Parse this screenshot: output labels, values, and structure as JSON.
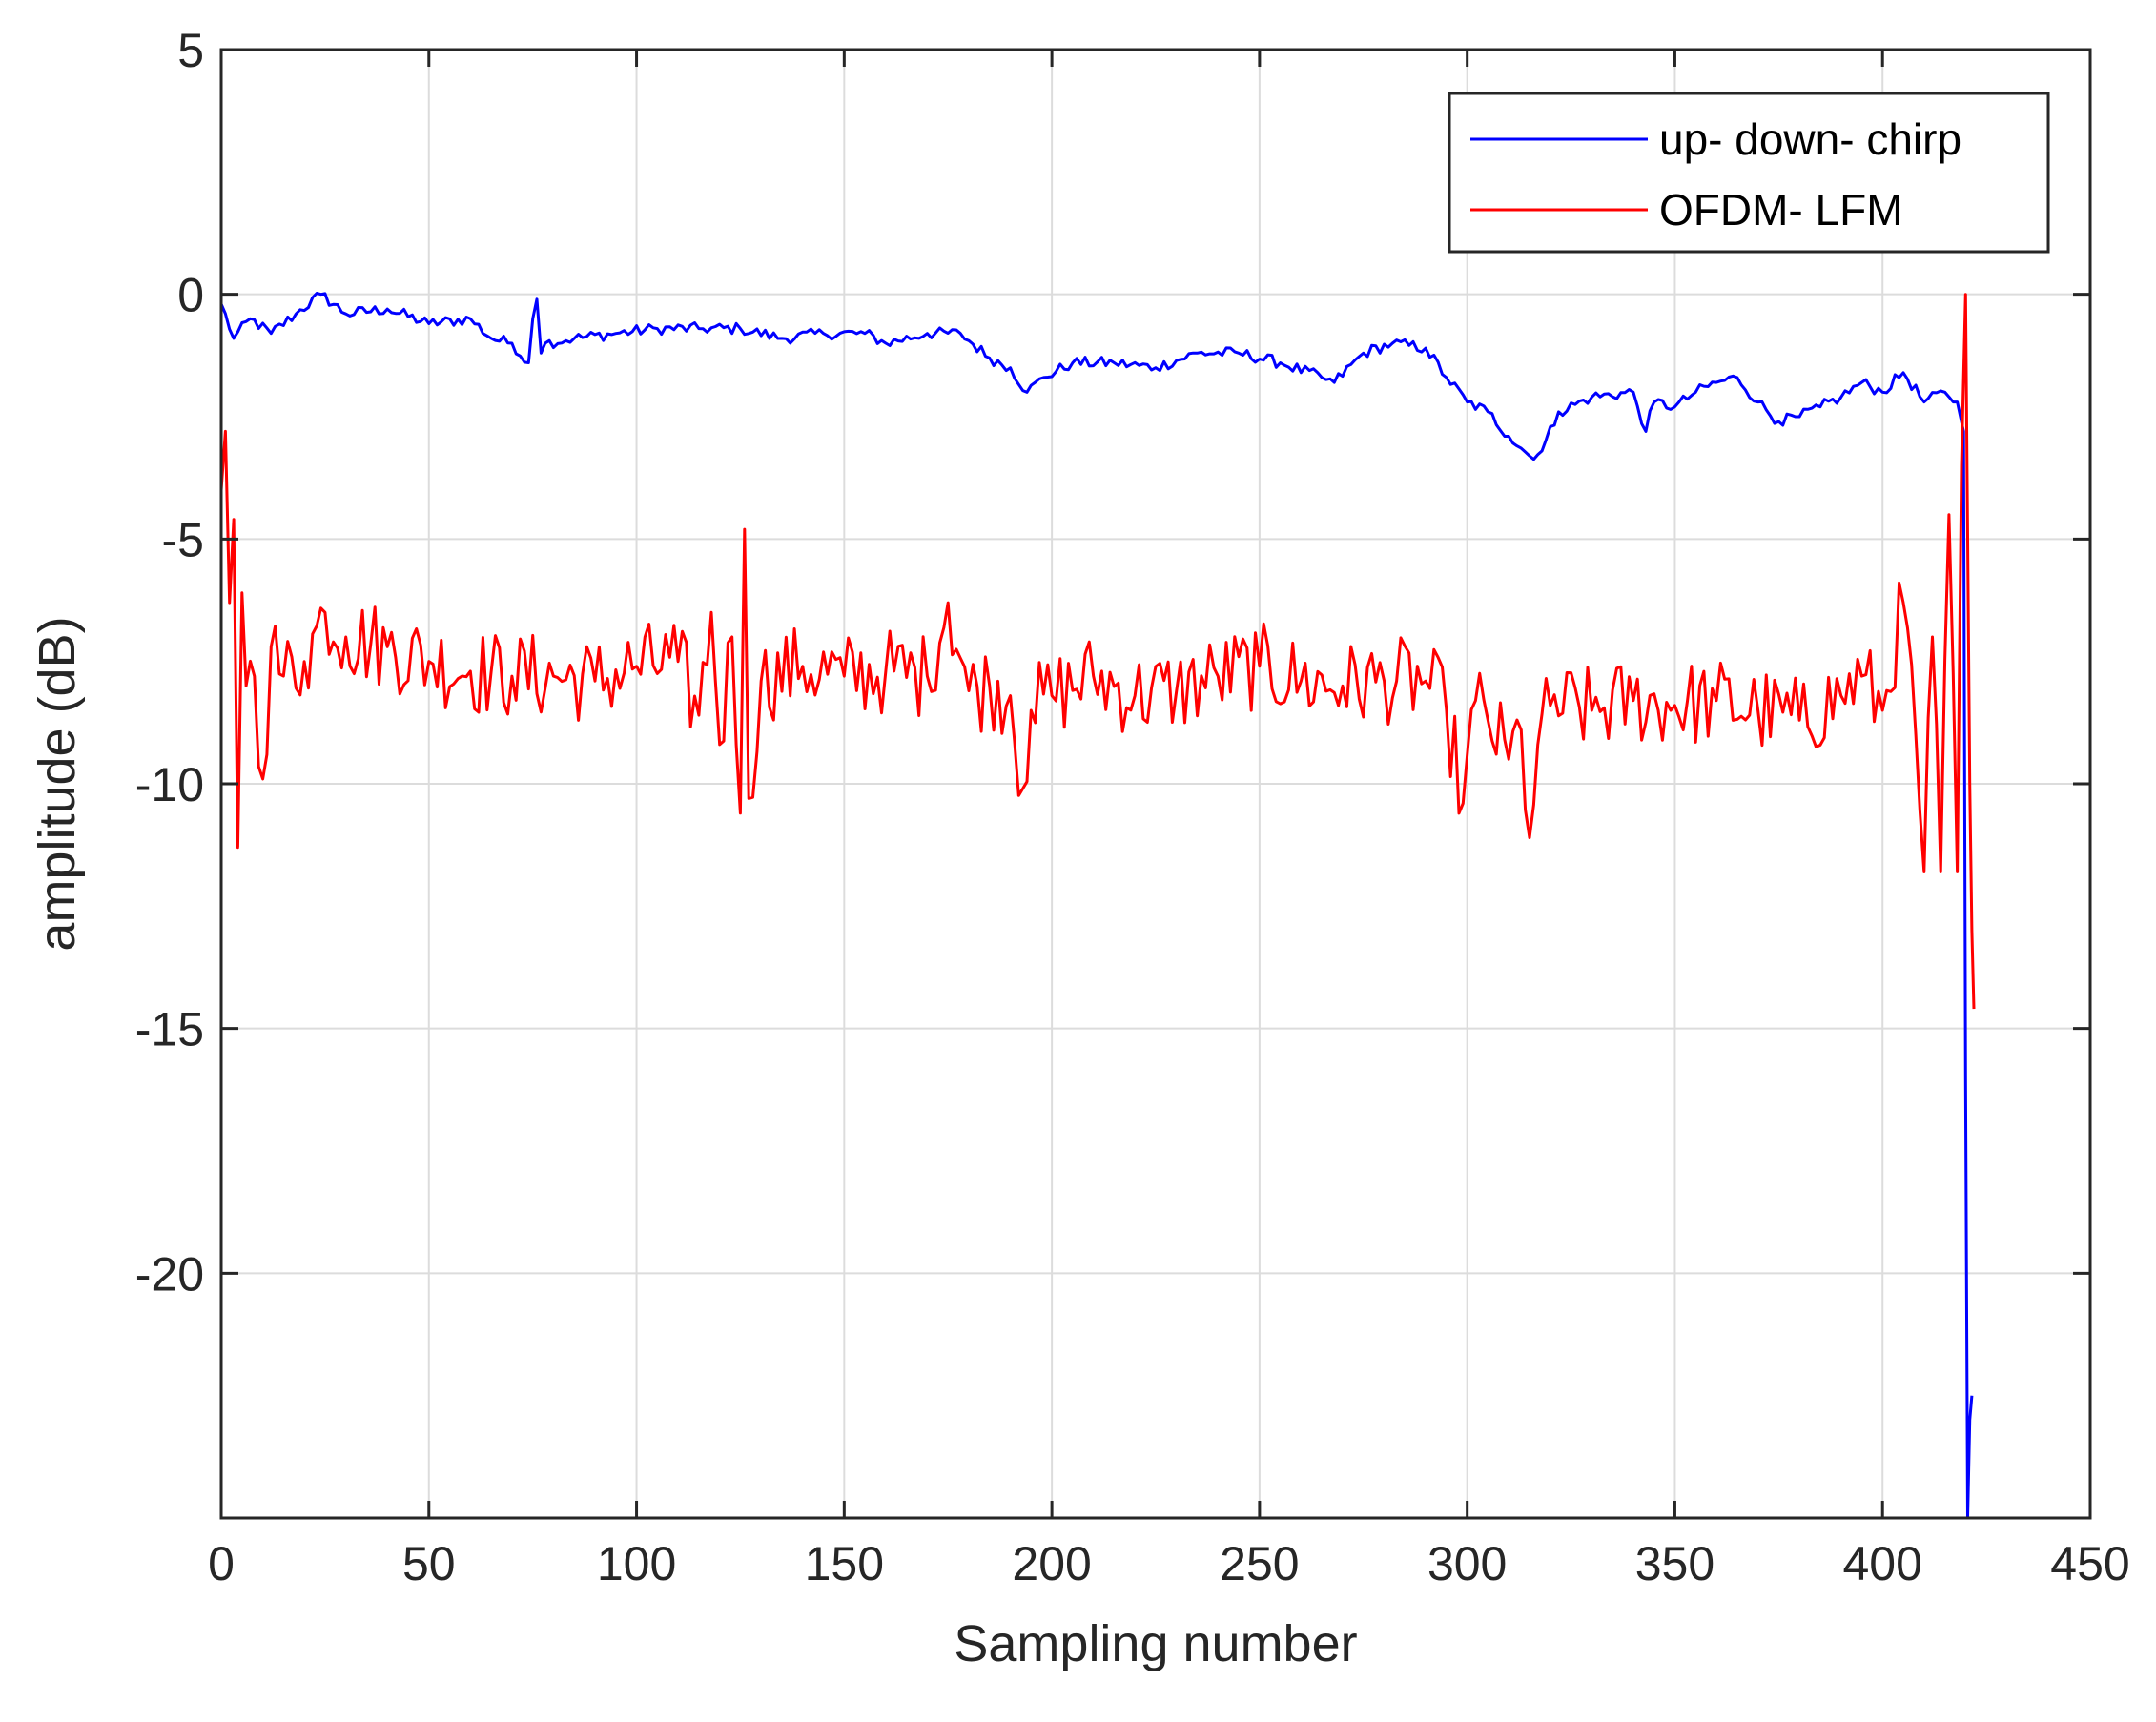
{
  "chart_data": {
    "type": "line",
    "title": "",
    "xlabel": "Sampling number",
    "ylabel": "amplitude (dB)",
    "xlim": [
      0,
      450
    ],
    "ylim": [
      -25,
      5
    ],
    "xticks": [
      0,
      50,
      100,
      150,
      200,
      250,
      300,
      350,
      400,
      450
    ],
    "yticks": [
      5,
      0,
      -5,
      -10,
      -15,
      -20
    ],
    "grid": true,
    "legend_position": "top-right",
    "series": [
      {
        "name": "up- down- chirp",
        "color": "#0000ff",
        "x": [
          0,
          3,
          7,
          12,
          18,
          24,
          30,
          40,
          50,
          60,
          65,
          70,
          74,
          75,
          76,
          77,
          78,
          85,
          95,
          105,
          115,
          125,
          135,
          145,
          155,
          160,
          170,
          178,
          185,
          190,
          194,
          198,
          205,
          215,
          225,
          235,
          245,
          255,
          265,
          268,
          275,
          282,
          290,
          295,
          300,
          305,
          310,
          315,
          318,
          322,
          330,
          340,
          343,
          345,
          350,
          355,
          360,
          365,
          370,
          375,
          380,
          385,
          390,
          395,
          400,
          405,
          410,
          415,
          418,
          419.5,
          420,
          420.5,
          421,
          421.5
        ],
        "values": [
          -0.2,
          -0.9,
          -0.5,
          -0.8,
          -0.4,
          0.0,
          -0.4,
          -0.3,
          -0.6,
          -0.5,
          -0.9,
          -1.0,
          -1.4,
          -0.5,
          -0.1,
          -1.2,
          -1.0,
          -0.9,
          -0.8,
          -0.7,
          -0.7,
          -0.7,
          -0.9,
          -0.8,
          -0.8,
          -1.0,
          -0.8,
          -0.8,
          -1.3,
          -1.5,
          -2.0,
          -1.7,
          -1.4,
          -1.4,
          -1.5,
          -1.2,
          -1.2,
          -1.4,
          -1.7,
          -1.8,
          -1.2,
          -1.0,
          -1.1,
          -1.7,
          -2.2,
          -2.4,
          -2.9,
          -3.3,
          -3.2,
          -2.4,
          -2.1,
          -2.0,
          -2.8,
          -2.2,
          -2.3,
          -2.0,
          -1.8,
          -1.7,
          -2.2,
          -2.6,
          -2.5,
          -2.3,
          -2.1,
          -1.8,
          -2.0,
          -1.6,
          -2.2,
          -2.0,
          -2.2,
          -2.8,
          -16.0,
          -25.0,
          -23.0,
          -22.5
        ]
      },
      {
        "name": "OFDM- LFM",
        "color": "#ff0000",
        "x": [
          0,
          1,
          2,
          3,
          4,
          5,
          6,
          8,
          10,
          12,
          15,
          20,
          25,
          30,
          40,
          50,
          60,
          70,
          80,
          90,
          100,
          110,
          115,
          118,
          120,
          123,
          125,
          126,
          127,
          130,
          140,
          150,
          160,
          170,
          175,
          180,
          185,
          190,
          193,
          195,
          200,
          210,
          220,
          230,
          240,
          250,
          260,
          270,
          280,
          290,
          295,
          299,
          302,
          305,
          310,
          313,
          315,
          317,
          320,
          330,
          340,
          350,
          360,
          370,
          380,
          390,
          395,
          400,
          405,
          408,
          410,
          412,
          414,
          416,
          418,
          419,
          420,
          420.5,
          421,
          421.5,
          422
        ],
        "values": [
          -4.0,
          -2.8,
          -6.3,
          -4.6,
          -11.3,
          -6.1,
          -8.0,
          -7.8,
          -9.9,
          -7.2,
          -7.8,
          -7.5,
          -6.5,
          -7.0,
          -7.2,
          -7.5,
          -7.7,
          -7.8,
          -7.8,
          -7.9,
          -7.6,
          -7.5,
          -8.6,
          -6.5,
          -9.2,
          -7.0,
          -10.6,
          -4.8,
          -10.3,
          -7.9,
          -7.6,
          -7.8,
          -7.7,
          -7.8,
          -6.3,
          -8.1,
          -8.0,
          -8.2,
          -10.1,
          -8.5,
          -8.2,
          -7.8,
          -8.2,
          -8.1,
          -7.8,
          -7.6,
          -7.9,
          -8.0,
          -7.9,
          -7.9,
          -8.5,
          -10.4,
          -8.3,
          -8.7,
          -9.5,
          -8.9,
          -11.1,
          -9.2,
          -8.4,
          -8.5,
          -8.3,
          -8.4,
          -8.3,
          -8.5,
          -8.7,
          -8.2,
          -7.8,
          -8.5,
          -6.3,
          -9.0,
          -11.8,
          -7.0,
          -11.8,
          -4.5,
          -11.8,
          -3.5,
          0.0,
          -5.0,
          -10.0,
          -13.0,
          -14.6
        ]
      }
    ]
  }
}
